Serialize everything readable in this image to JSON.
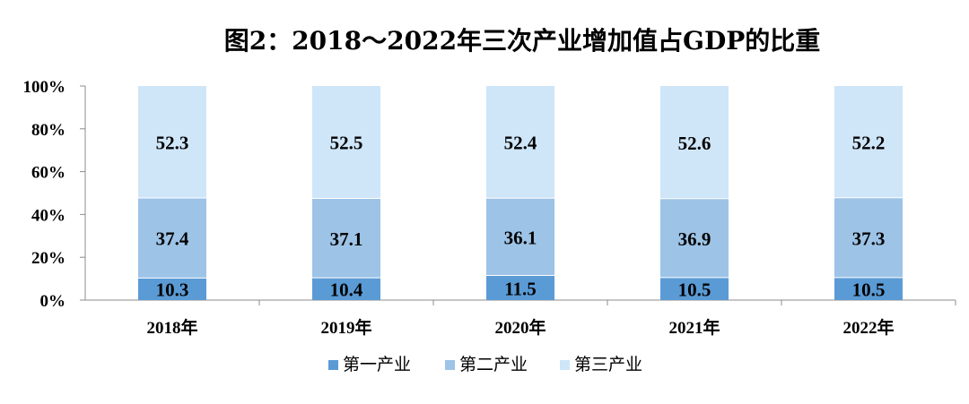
{
  "chart_data": {
    "type": "bar",
    "stacked": true,
    "percent_axis": true,
    "title": "图2：2018～2022年三次产业增加值占GDP的比重",
    "categories": [
      "2018年",
      "2019年",
      "2020年",
      "2021年",
      "2022年"
    ],
    "series": [
      {
        "name": "第一产业",
        "values": [
          10.3,
          10.4,
          11.5,
          10.5,
          10.5
        ],
        "color": "#5b9bd5"
      },
      {
        "name": "第二产业",
        "values": [
          37.4,
          37.1,
          36.1,
          36.9,
          37.3
        ],
        "color": "#9dc3e6"
      },
      {
        "name": "第三产业",
        "values": [
          52.3,
          52.5,
          52.4,
          52.6,
          52.2
        ],
        "color": "#cfe5f8"
      }
    ],
    "ylim": [
      0,
      100
    ],
    "yticks": [
      "0%",
      "20%",
      "40%",
      "60%",
      "80%",
      "100%"
    ],
    "legend_position": "bottom",
    "grid": false
  }
}
